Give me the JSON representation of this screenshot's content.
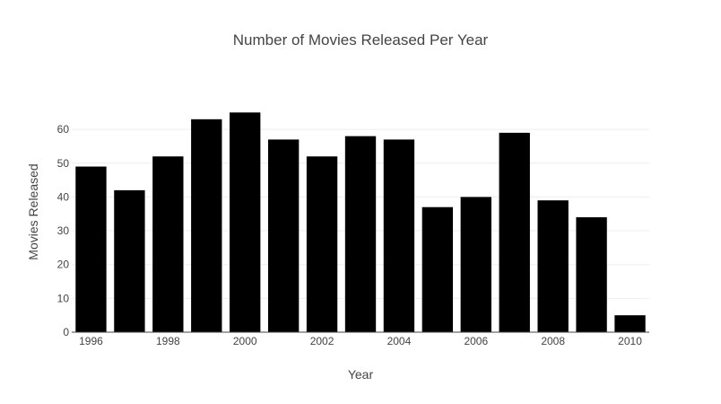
{
  "chart_data": {
    "type": "bar",
    "title": "Number of Movies Released Per Year",
    "xlabel": "Year",
    "ylabel": "Movies Released",
    "categories": [
      "1996",
      "1997",
      "1998",
      "1999",
      "2000",
      "2001",
      "2002",
      "2003",
      "2004",
      "2005",
      "2006",
      "2007",
      "2008",
      "2009",
      "2010"
    ],
    "values": [
      49,
      42,
      52,
      63,
      65,
      57,
      52,
      58,
      57,
      37,
      40,
      59,
      39,
      34,
      5
    ],
    "x_tick_labels": [
      "1996",
      "1998",
      "2000",
      "2002",
      "2004",
      "2006",
      "2008",
      "2010"
    ],
    "y_ticks": [
      0,
      10,
      20,
      30,
      40,
      50,
      60
    ],
    "ylim": [
      0,
      68
    ],
    "grid": true,
    "bar_color": "#000000"
  }
}
